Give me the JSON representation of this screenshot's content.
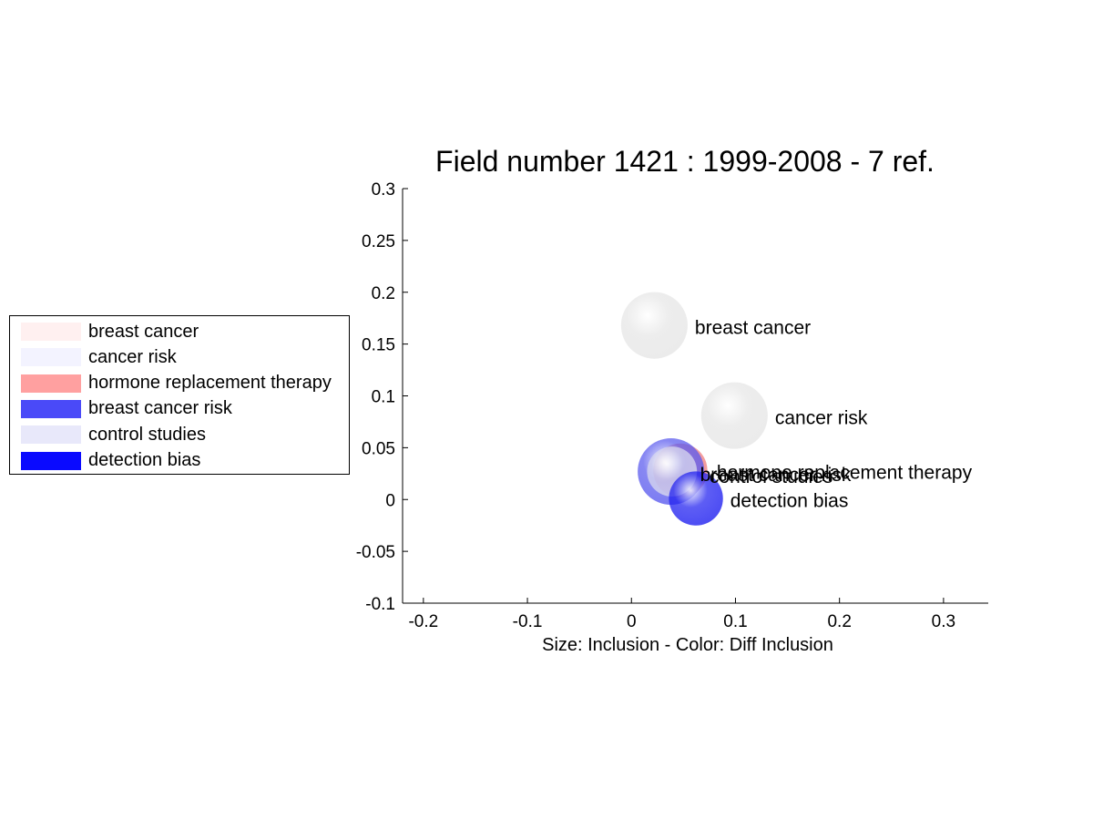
{
  "chart_data": {
    "type": "scatter",
    "title": "Field number 1421 : 1999-2008  - 7 ref.",
    "xlabel": "Size: Inclusion - Color: Diff Inclusion",
    "ylabel": "",
    "xlim": [
      -0.22,
      0.343
    ],
    "ylim": [
      -0.1,
      0.3
    ],
    "xticks": [
      "-0.2",
      "-0.1",
      "0",
      "0.1",
      "0.2",
      "0.3"
    ],
    "xtick_values": [
      -0.2,
      -0.1,
      0,
      0.1,
      0.2,
      0.3
    ],
    "yticks": [
      "-0.1",
      "-0.05",
      "0",
      "0.05",
      "0.1",
      "0.15",
      "0.2",
      "0.25",
      "0.3"
    ],
    "ytick_values": [
      -0.1,
      -0.05,
      0,
      0.05,
      0.1,
      0.15,
      0.2,
      0.25,
      0.3
    ],
    "grid": false,
    "legend_position": "left",
    "points": [
      {
        "label": "breast cancer",
        "x": 0.022,
        "y": 0.168,
        "r": 0.032,
        "color": "#e6e6e6"
      },
      {
        "label": "cancer risk",
        "x": 0.099,
        "y": 0.081,
        "r": 0.032,
        "color": "#e6e6e6"
      },
      {
        "label": "hormone replacement therapy",
        "x": 0.047,
        "y": 0.028,
        "r": 0.026,
        "color": "#f08080"
      },
      {
        "label": "breast cancer risk",
        "x": 0.038,
        "y": 0.027,
        "r": 0.032,
        "color": "#5a5aee"
      },
      {
        "label": "control studies",
        "x": 0.039,
        "y": 0.027,
        "r": 0.024,
        "color": "#d8d8ee"
      },
      {
        "label": "detection bias",
        "x": 0.062,
        "y": 0.001,
        "r": 0.026,
        "color": "#2020f0"
      }
    ],
    "point_labels": [
      {
        "text": "breast cancer",
        "x": 0.061,
        "y": 0.166
      },
      {
        "text": "cancer risk",
        "x": 0.138,
        "y": 0.079
      },
      {
        "text": "breast cancer risk",
        "x": 0.066,
        "y": 0.024
      },
      {
        "text": "control studies",
        "x": 0.075,
        "y": 0.022
      },
      {
        "text": "hormone replacement therapy",
        "x": 0.082,
        "y": 0.026
      },
      {
        "text": "detection bias",
        "x": 0.095,
        "y": -0.001
      }
    ],
    "legend": [
      {
        "label": "breast cancer",
        "color": "#fff0f0"
      },
      {
        "label": "cancer risk",
        "color": "#f3f3ff"
      },
      {
        "label": "hormone replacement therapy",
        "color": "#ffa0a0"
      },
      {
        "label": "breast cancer risk",
        "color": "#4a4af8"
      },
      {
        "label": "control studies",
        "color": "#e8e8fa"
      },
      {
        "label": "detection bias",
        "color": "#0a0aff"
      }
    ]
  }
}
